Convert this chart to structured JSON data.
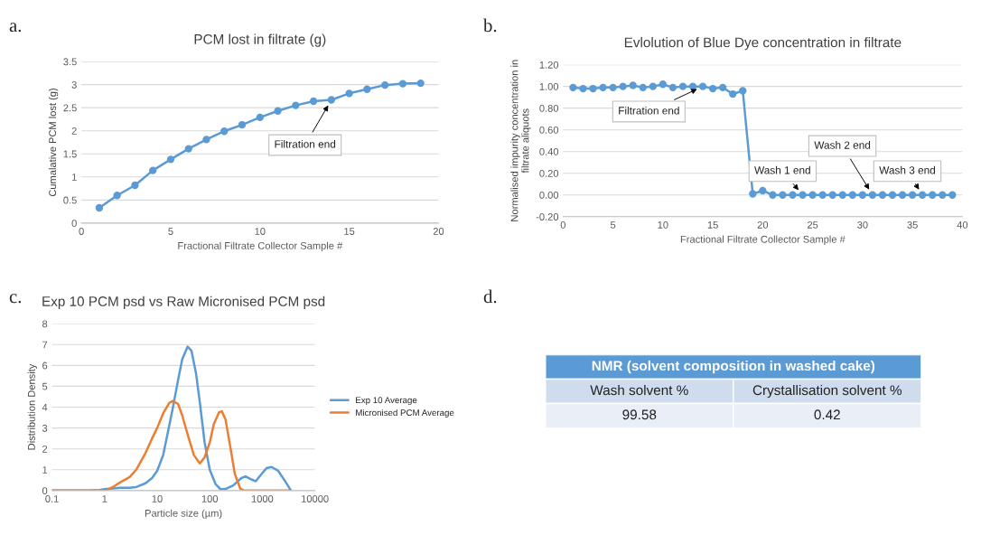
{
  "chart_data": [
    {
      "type": "line",
      "title": "PCM lost in filtrate (g)",
      "xlabel": "Fractional Filtrate Collector Sample #",
      "ylabel": "Cumalative PCM lost (g)",
      "x": [
        1,
        2,
        3,
        4,
        5,
        6,
        7,
        8,
        9,
        10,
        11,
        12,
        13,
        14,
        15,
        16,
        17,
        18,
        19
      ],
      "series": [
        {
          "color": "#5b9bd5",
          "values": [
            0.33,
            0.6,
            0.82,
            1.14,
            1.38,
            1.61,
            1.81,
            1.99,
            2.13,
            2.29,
            2.43,
            2.55,
            2.64,
            2.67,
            2.81,
            2.9,
            2.99,
            3.02,
            3.03
          ]
        }
      ],
      "xlim": [
        0,
        20
      ],
      "xticks": [
        0,
        5,
        10,
        15,
        20
      ],
      "ylim": [
        0,
        3.5
      ],
      "yticks": [
        0,
        0.5,
        1,
        1.5,
        2,
        2.5,
        3,
        3.5
      ],
      "grid": "y",
      "marker": "circle",
      "line_style": "solid",
      "annotations": [
        "a.",
        {
          "text": "Filtration end",
          "x": 14,
          "y": 2.67
        }
      ]
    },
    {
      "type": "line",
      "title": "Evlolution of Blue Dye concentration in filtrate",
      "xlabel": "Fractional Filtrate Collector Sample #",
      "ylabel": "Normalised impurity concentration in\nfiltrate aliquots",
      "x": [
        1,
        2,
        3,
        4,
        5,
        6,
        7,
        8,
        9,
        10,
        11,
        12,
        13,
        14,
        15,
        16,
        17,
        18,
        19,
        20,
        21,
        22,
        23,
        24,
        25,
        26,
        27,
        28,
        29,
        30,
        31,
        32,
        33,
        34,
        35,
        36,
        37,
        38,
        39
      ],
      "series": [
        {
          "color": "#5b9bd5",
          "values": [
            0.99,
            0.98,
            0.98,
            0.99,
            0.99,
            1.0,
            1.01,
            0.99,
            1.0,
            1.02,
            0.99,
            1.0,
            1.0,
            1.0,
            0.98,
            0.99,
            0.93,
            0.96,
            0.01,
            0.04,
            0,
            0,
            0,
            0,
            0,
            0,
            0,
            0,
            0,
            0,
            0,
            0,
            0,
            0,
            0,
            0,
            0,
            0,
            0
          ]
        }
      ],
      "xlim": [
        0,
        40
      ],
      "xticks": [
        0,
        5,
        10,
        15,
        20,
        25,
        30,
        35,
        40
      ],
      "ylim": [
        -0.2,
        1.2
      ],
      "yticks": [
        {
          "value": -0.2,
          "label": "-0.20"
        },
        {
          "value": 0,
          "label": "0.00"
        },
        {
          "value": 0.2,
          "label": "0.20"
        },
        {
          "value": 0.4,
          "label": "0.40"
        },
        {
          "value": 0.6,
          "label": "0.60"
        },
        {
          "value": 0.8,
          "label": "0.80"
        },
        {
          "value": 1.0,
          "label": "1.00"
        },
        {
          "value": 1.2,
          "label": "1.20"
        }
      ],
      "grid": "y",
      "marker": "circle",
      "line_style": "solid",
      "annotations": [
        "b.",
        {
          "text": "Filtration end",
          "x": 14,
          "y": 1.0
        },
        {
          "text": "Wash 1 end",
          "x": 24,
          "y": 0
        },
        {
          "text": "Wash 2 end",
          "x": 31,
          "y": 0
        },
        {
          "text": "Wash 3 end",
          "x": 36,
          "y": 0
        }
      ]
    },
    {
      "type": "line",
      "title": "Exp 10 PCM psd vs Raw Micronised PCM psd",
      "xlabel": "Particle size (µm)",
      "ylabel": "Distribution Density",
      "log": "x",
      "series": [
        {
          "name": "Exp 10 Average",
          "color": "#5b9bd5",
          "x": [
            0.1,
            0.5,
            0.8,
            1,
            2,
            3,
            4,
            6,
            8,
            10,
            13,
            16,
            20,
            25,
            30,
            38,
            45,
            55,
            65,
            80,
            100,
            130,
            160,
            200,
            280,
            400,
            480,
            600,
            750,
            900,
            1200,
            1500,
            2000,
            2800,
            3500
          ],
          "values": [
            0,
            0,
            0.03,
            0.07,
            0.14,
            0.13,
            0.17,
            0.35,
            0.6,
            0.95,
            1.7,
            2.8,
            4.0,
            5.3,
            6.3,
            6.9,
            6.7,
            5.6,
            4.2,
            2.3,
            1.0,
            0.3,
            0.07,
            0.08,
            0.25,
            0.6,
            0.68,
            0.55,
            0.45,
            0.7,
            1.08,
            1.13,
            0.95,
            0.4,
            0
          ]
        },
        {
          "name": "Micronised PCM Average",
          "color": "#ed7d31",
          "x": [
            0.1,
            0.8,
            1.1,
            1.5,
            2,
            3,
            4,
            6,
            8,
            10,
            13,
            17,
            20,
            25,
            30,
            40,
            50,
            65,
            80,
            100,
            120,
            150,
            170,
            200,
            250,
            300,
            380,
            450,
            3500
          ],
          "values": [
            0,
            0,
            0.02,
            0.2,
            0.4,
            0.65,
            1.0,
            1.8,
            2.5,
            3.0,
            3.7,
            4.2,
            4.3,
            4.15,
            3.6,
            2.5,
            1.7,
            1.3,
            1.6,
            2.3,
            3.2,
            3.75,
            3.8,
            3.4,
            2.0,
            0.8,
            0.1,
            0,
            0
          ]
        }
      ],
      "xlim": [
        0.1,
        10000
      ],
      "xticks": [
        0.1,
        1,
        10,
        100,
        1000,
        10000
      ],
      "ylim": [
        0,
        8
      ],
      "yticks": [
        0,
        1,
        2,
        3,
        4,
        5,
        6,
        7,
        8
      ],
      "grid": "y",
      "marker": "none",
      "line_style": "solid",
      "legend": "right",
      "annotations": [
        "c."
      ]
    },
    {
      "type": "other",
      "title": "NMR (solvent composition in washed cake)",
      "annotations": [
        "d.",
        "Wash solvent %",
        "Crystallisation solvent %",
        "99.58",
        "0.42"
      ]
    }
  ]
}
